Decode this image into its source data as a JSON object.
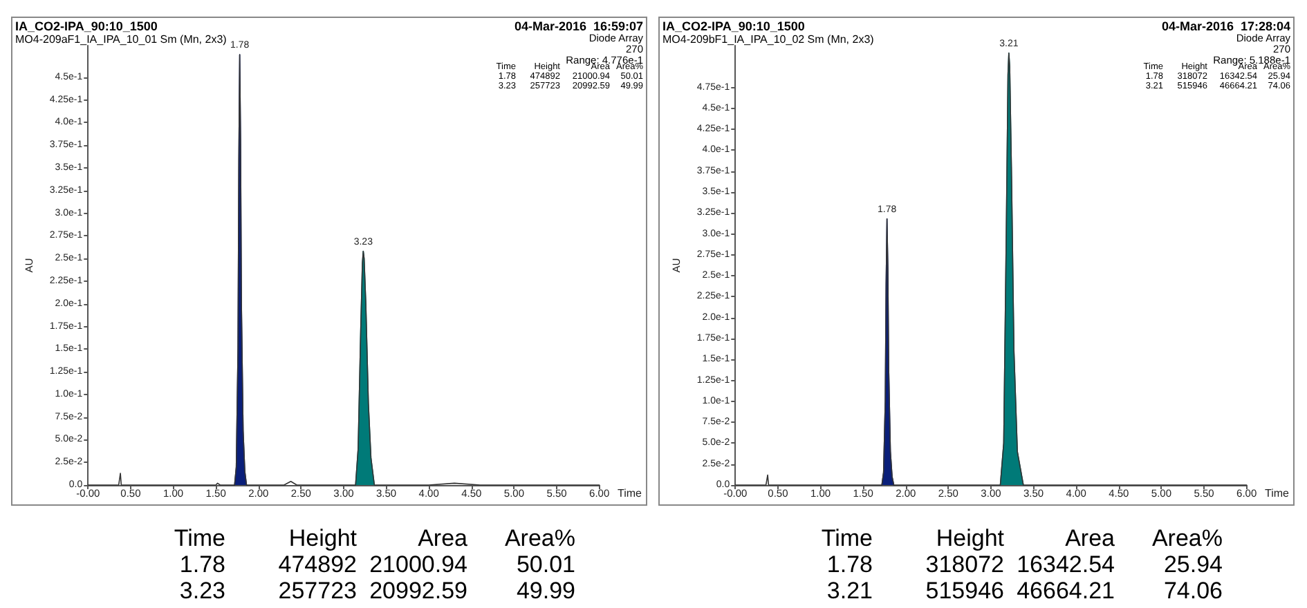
{
  "chart_data": [
    {
      "type": "line",
      "title": "IA_CO2-IPA_90:10_1500",
      "subtitle": "MO4-209aF1_IA_IPA_10_01 Sm (Mn, 2x3)",
      "xlabel": "Time",
      "ylabel": "AU",
      "xlim": [
        0,
        6
      ],
      "ylim": [
        0,
        0.485
      ],
      "xticks": [
        {
          "value": 0,
          "label": "-0.00"
        },
        {
          "value": 0.5,
          "label": "0.50"
        },
        {
          "value": 1,
          "label": "1.00"
        },
        {
          "value": 1.5,
          "label": "1.50"
        },
        {
          "value": 2,
          "label": "2.00"
        },
        {
          "value": 2.5,
          "label": "2.50"
        },
        {
          "value": 3,
          "label": "3.00"
        },
        {
          "value": 3.5,
          "label": "3.50"
        },
        {
          "value": 4,
          "label": "4.00"
        },
        {
          "value": 4.5,
          "label": "4.50"
        },
        {
          "value": 5,
          "label": "5.00"
        },
        {
          "value": 5.5,
          "label": "5.50"
        },
        {
          "value": 6,
          "label": "6.00"
        }
      ],
      "yticks": [
        {
          "value": 0,
          "label": "0.0"
        },
        {
          "value": 0.025,
          "label": "2.5e-2"
        },
        {
          "value": 0.05,
          "label": "5.0e-2"
        },
        {
          "value": 0.075,
          "label": "7.5e-2"
        },
        {
          "value": 0.1,
          "label": "1.0e-1"
        },
        {
          "value": 0.125,
          "label": "1.25e-1"
        },
        {
          "value": 0.15,
          "label": "1.5e-1"
        },
        {
          "value": 0.175,
          "label": "1.75e-1"
        },
        {
          "value": 0.2,
          "label": "2.0e-1"
        },
        {
          "value": 0.225,
          "label": "2.25e-1"
        },
        {
          "value": 0.25,
          "label": "2.5e-1"
        },
        {
          "value": 0.275,
          "label": "2.75e-1"
        },
        {
          "value": 0.3,
          "label": "3.0e-1"
        },
        {
          "value": 0.325,
          "label": "3.25e-1"
        },
        {
          "value": 0.35,
          "label": "3.5e-1"
        },
        {
          "value": 0.375,
          "label": "3.75e-1"
        },
        {
          "value": 0.4,
          "label": "4.0e-1"
        },
        {
          "value": 0.425,
          "label": "4.25e-1"
        },
        {
          "value": 0.45,
          "label": "4.5e-1"
        }
      ],
      "marker": "none",
      "line_style": "solid",
      "series": [
        {
          "color": "#333333",
          "x": [
            0,
            0.36,
            0.37,
            0.38,
            0.39,
            0.4,
            0.5,
            1.0,
            1.5,
            1.52,
            1.55,
            1.7,
            1.72,
            1.74,
            1.76,
            1.77,
            1.78,
            1.79,
            1.8,
            1.82,
            1.84,
            1.86,
            1.9,
            2.3,
            2.38,
            2.45,
            3.0,
            3.14,
            3.17,
            3.2,
            3.22,
            3.23,
            3.24,
            3.26,
            3.29,
            3.32,
            3.36,
            3.4,
            4.0,
            4.3,
            4.6,
            5.0,
            6.0
          ],
          "values": [
            0,
            0,
            0,
            0.013,
            0,
            0,
            0,
            0,
            0,
            0.002,
            0,
            0,
            0,
            0.02,
            0.15,
            0.36,
            0.475,
            0.38,
            0.2,
            0.06,
            0.015,
            0,
            0,
            0,
            0.004,
            0,
            0,
            0,
            0.04,
            0.17,
            0.245,
            0.258,
            0.25,
            0.2,
            0.09,
            0.03,
            0,
            0,
            0,
            0.002,
            0,
            0,
            0
          ]
        },
        {
          "type": "area",
          "color": "#0a1f7a",
          "x": [
            1.72,
            1.74,
            1.76,
            1.77,
            1.78,
            1.79,
            1.8,
            1.82,
            1.84,
            1.86
          ],
          "values": [
            0,
            0.02,
            0.15,
            0.36,
            0.475,
            0.38,
            0.2,
            0.06,
            0.015,
            0
          ]
        },
        {
          "type": "area",
          "color": "#007a78",
          "x": [
            3.14,
            3.17,
            3.2,
            3.22,
            3.23,
            3.24,
            3.26,
            3.29,
            3.32,
            3.36
          ],
          "values": [
            0,
            0.04,
            0.17,
            0.245,
            0.258,
            0.25,
            0.2,
            0.09,
            0.03,
            0
          ]
        }
      ],
      "annotations": [
        "04-Mar-2016  16:59:07",
        "Diode Array",
        "270",
        "Range: 4.776e-1",
        "Time",
        "Height",
        "Area",
        "Area%",
        "1.78",
        "474892",
        "21000.94",
        "50.01",
        "3.23",
        "257723",
        "20992.59",
        "49.99",
        "Time",
        "Height",
        "Area",
        "Area%",
        "1.78",
        "474892",
        "21000.94",
        "50.01",
        "3.23",
        "257723",
        "20992.59",
        "49.99",
        {
          "text": "1.78",
          "x": 1.78,
          "y": 0.475
        },
        {
          "text": "3.23",
          "x": 3.23,
          "y": 0.258
        }
      ]
    },
    {
      "type": "line",
      "title": "IA_CO2-IPA_90:10_1500",
      "subtitle": "MO4-209bF1_IA_IPA_10_02 Sm (Mn, 2x3)",
      "xlabel": "Time",
      "ylabel": "AU",
      "xlim": [
        0,
        6
      ],
      "ylim": [
        0,
        0.525
      ],
      "xticks": [
        {
          "value": 0,
          "label": "-0.00"
        },
        {
          "value": 0.5,
          "label": "0.50"
        },
        {
          "value": 1,
          "label": "1.00"
        },
        {
          "value": 1.5,
          "label": "1.50"
        },
        {
          "value": 2,
          "label": "2.00"
        },
        {
          "value": 2.5,
          "label": "2.50"
        },
        {
          "value": 3,
          "label": "3.00"
        },
        {
          "value": 3.5,
          "label": "3.50"
        },
        {
          "value": 4,
          "label": "4.00"
        },
        {
          "value": 4.5,
          "label": "4.50"
        },
        {
          "value": 5,
          "label": "5.00"
        },
        {
          "value": 5.5,
          "label": "5.50"
        },
        {
          "value": 6,
          "label": "6.00"
        }
      ],
      "yticks": [
        {
          "value": 0,
          "label": "0.0"
        },
        {
          "value": 0.025,
          "label": "2.5e-2"
        },
        {
          "value": 0.05,
          "label": "5.0e-2"
        },
        {
          "value": 0.075,
          "label": "7.5e-2"
        },
        {
          "value": 0.1,
          "label": "1.0e-1"
        },
        {
          "value": 0.125,
          "label": "1.25e-1"
        },
        {
          "value": 0.15,
          "label": "1.5e-1"
        },
        {
          "value": 0.175,
          "label": "1.75e-1"
        },
        {
          "value": 0.2,
          "label": "2.0e-1"
        },
        {
          "value": 0.225,
          "label": "2.25e-1"
        },
        {
          "value": 0.25,
          "label": "2.5e-1"
        },
        {
          "value": 0.275,
          "label": "2.75e-1"
        },
        {
          "value": 0.3,
          "label": "3.0e-1"
        },
        {
          "value": 0.325,
          "label": "3.25e-1"
        },
        {
          "value": 0.35,
          "label": "3.5e-1"
        },
        {
          "value": 0.375,
          "label": "3.75e-1"
        },
        {
          "value": 0.4,
          "label": "4.0e-1"
        },
        {
          "value": 0.425,
          "label": "4.25e-1"
        },
        {
          "value": 0.45,
          "label": "4.5e-1"
        },
        {
          "value": 0.475,
          "label": "4.75e-1"
        }
      ],
      "marker": "none",
      "line_style": "solid",
      "series": [
        {
          "color": "#333333",
          "x": [
            0,
            0.36,
            0.37,
            0.38,
            0.39,
            0.4,
            0.5,
            1.0,
            1.5,
            1.7,
            1.72,
            1.74,
            1.76,
            1.77,
            1.78,
            1.79,
            1.8,
            1.82,
            1.84,
            1.86,
            1.9,
            2.5,
            3.0,
            3.11,
            3.15,
            3.18,
            3.2,
            3.21,
            3.22,
            3.24,
            3.27,
            3.31,
            3.38,
            3.45,
            4.0,
            5.0,
            6.0
          ],
          "values": [
            0,
            0,
            0,
            0.012,
            0,
            0,
            0,
            0,
            0,
            0,
            0,
            0.015,
            0.1,
            0.24,
            0.318,
            0.26,
            0.14,
            0.04,
            0.01,
            0,
            0,
            0,
            0,
            0,
            0.05,
            0.3,
            0.49,
            0.516,
            0.5,
            0.38,
            0.16,
            0.04,
            0,
            0,
            0,
            0,
            0
          ]
        },
        {
          "type": "area",
          "color": "#0a1f7a",
          "x": [
            1.72,
            1.74,
            1.76,
            1.77,
            1.78,
            1.79,
            1.8,
            1.82,
            1.84,
            1.86
          ],
          "values": [
            0,
            0.015,
            0.1,
            0.24,
            0.318,
            0.26,
            0.14,
            0.04,
            0.01,
            0
          ]
        },
        {
          "type": "area",
          "color": "#007a78",
          "x": [
            3.11,
            3.15,
            3.18,
            3.2,
            3.21,
            3.22,
            3.24,
            3.27,
            3.31,
            3.38
          ],
          "values": [
            0,
            0.05,
            0.3,
            0.49,
            0.516,
            0.5,
            0.38,
            0.16,
            0.04,
            0
          ]
        }
      ],
      "annotations": [
        "04-Mar-2016  17:28:04",
        "Diode Array",
        "270",
        "Range: 5.188e-1",
        "Time",
        "Height",
        "Area",
        "Area%",
        "1.78",
        "318072",
        "16342.54",
        "25.94",
        "3.21",
        "515946",
        "46664.21",
        "74.06",
        "Time",
        "Height",
        "Area",
        "Area%",
        "1.78",
        "318072",
        "16342.54",
        "25.94",
        "3.21",
        "515946",
        "46664.21",
        "74.06",
        {
          "text": "1.78",
          "x": 1.78,
          "y": 0.318
        },
        {
          "text": "3.21",
          "x": 3.21,
          "y": 0.516
        }
      ]
    }
  ]
}
